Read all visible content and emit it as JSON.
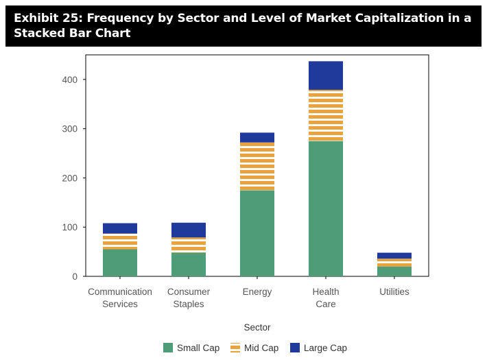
{
  "header": {
    "title_line1": "Exhibit 25: Frequency by Sector and Level of Market Capitalization in a",
    "title_line2": "Stacked Bar Chart"
  },
  "colors": {
    "small_cap": "#4e9d78",
    "mid_cap": "#e8a33c",
    "large_cap": "#1f3a9a",
    "title_bg": "#000000"
  },
  "chart_data": {
    "type": "bar",
    "stacked": true,
    "title": "Exhibit 25: Frequency by Sector and Level of Market Capitalization in a Stacked Bar Chart",
    "xlabel": "Sector",
    "ylabel": "",
    "categories": [
      [
        "Communication",
        "Services"
      ],
      [
        "Consumer",
        "Staples"
      ],
      [
        "Energy"
      ],
      [
        "Health",
        "Care"
      ],
      [
        "Utilities"
      ]
    ],
    "ylim": [
      0,
      450
    ],
    "yticks": [
      0,
      100,
      200,
      300,
      400
    ],
    "legend_position": "bottom",
    "series": [
      {
        "name": "Small Cap",
        "values": [
          55,
          48,
          175,
          275,
          20
        ],
        "pattern": "solid",
        "color": "#4e9d78"
      },
      {
        "name": "Mid Cap",
        "values": [
          32,
          31,
          97,
          104,
          16
        ],
        "pattern": "stripes",
        "color": "#e8a33c"
      },
      {
        "name": "Large Cap",
        "values": [
          21,
          30,
          20,
          58,
          12
        ],
        "pattern": "solid",
        "color": "#1f3a9a"
      }
    ]
  }
}
